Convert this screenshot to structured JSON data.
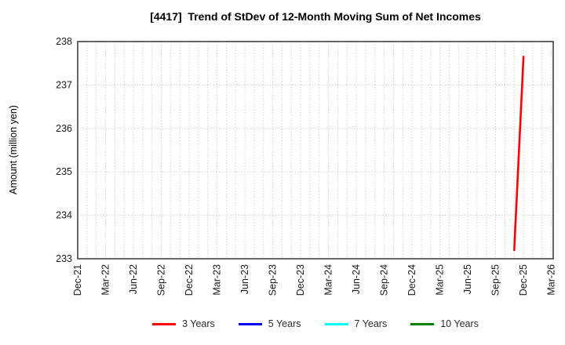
{
  "title": "[4417]  Trend of StDev of 12-Month Moving Sum of Net Incomes",
  "chart_data": {
    "type": "line",
    "title": "[4417]  Trend of StDev of 12-Month Moving Sum of Net Incomes",
    "xlabel": "",
    "ylabel": "Amount (million yen)",
    "ylim": [
      233,
      238
    ],
    "yticks": [
      233,
      234,
      235,
      236,
      237,
      238
    ],
    "x_axis": {
      "start_month": "Dec-21",
      "end_month": "Mar-26",
      "months_span": 51.2,
      "tick_interval_months": 3,
      "gridline_interval_months": 1
    },
    "xticks": [
      {
        "label": "Dec-21",
        "month_index": 0
      },
      {
        "label": "Mar-22",
        "month_index": 3
      },
      {
        "label": "Jun-22",
        "month_index": 6
      },
      {
        "label": "Sep-22",
        "month_index": 9
      },
      {
        "label": "Dec-22",
        "month_index": 12
      },
      {
        "label": "Mar-23",
        "month_index": 15
      },
      {
        "label": "Jun-23",
        "month_index": 18
      },
      {
        "label": "Sep-23",
        "month_index": 21
      },
      {
        "label": "Dec-23",
        "month_index": 24
      },
      {
        "label": "Mar-24",
        "month_index": 27
      },
      {
        "label": "Jun-24",
        "month_index": 30
      },
      {
        "label": "Sep-24",
        "month_index": 33
      },
      {
        "label": "Dec-24",
        "month_index": 36
      },
      {
        "label": "Mar-25",
        "month_index": 39
      },
      {
        "label": "Jun-25",
        "month_index": 42
      },
      {
        "label": "Sep-25",
        "month_index": 45
      },
      {
        "label": "Dec-25",
        "month_index": 48
      },
      {
        "label": "Mar-26",
        "month_index": 51
      }
    ],
    "grid": {
      "style": "dotted",
      "color": "#b3b3b3"
    },
    "legend_position": "bottom-center",
    "series": [
      {
        "name": "3 Years",
        "color": "#ff0000",
        "points": [
          {
            "x": "Nov-25",
            "month_index": 47,
            "value": 233.2
          },
          {
            "x": "Dec-25",
            "month_index": 48,
            "value": 237.65
          }
        ]
      },
      {
        "name": "5 Years",
        "color": "#0000ff",
        "points": []
      },
      {
        "name": "7 Years",
        "color": "#00ffff",
        "points": []
      },
      {
        "name": "10 Years",
        "color": "#008000",
        "points": []
      }
    ],
    "axis_border_color": "#262626",
    "tick_label_color": "#1a1a1a"
  }
}
